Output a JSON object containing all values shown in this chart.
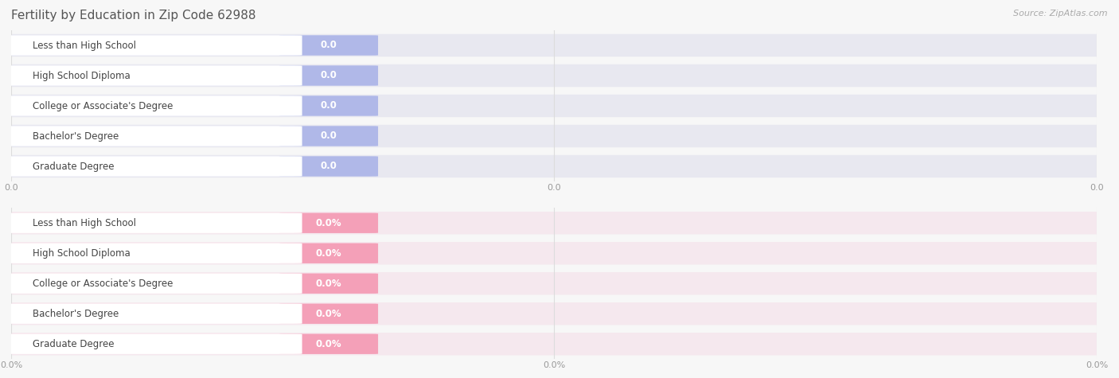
{
  "title": "Fertility by Education in Zip Code 62988",
  "source": "Source: ZipAtlas.com",
  "categories": [
    "Less than High School",
    "High School Diploma",
    "College or Associate's Degree",
    "Bachelor's Degree",
    "Graduate Degree"
  ],
  "top_values": [
    0.0,
    0.0,
    0.0,
    0.0,
    0.0
  ],
  "bottom_values": [
    0.0,
    0.0,
    0.0,
    0.0,
    0.0
  ],
  "top_bar_color": "#b0b8e8",
  "top_bar_bg": "#dde0f5",
  "bottom_bar_color": "#f4a0b8",
  "bottom_bar_bg": "#fad8e4",
  "top_row_bg": "#e8e8f0",
  "bottom_row_bg": "#f5e8ee",
  "white_bar": "#ffffff",
  "top_value_color": "#8890cc",
  "bottom_value_color": "#e07898",
  "bg_color": "#f7f7f7",
  "title_color": "#555555",
  "source_color": "#aaaaaa",
  "tick_color": "#999999",
  "grid_color": "#dddddd",
  "title_fontsize": 11,
  "label_fontsize": 8.5,
  "value_fontsize": 8.5,
  "source_fontsize": 8,
  "tick_fontsize": 8
}
